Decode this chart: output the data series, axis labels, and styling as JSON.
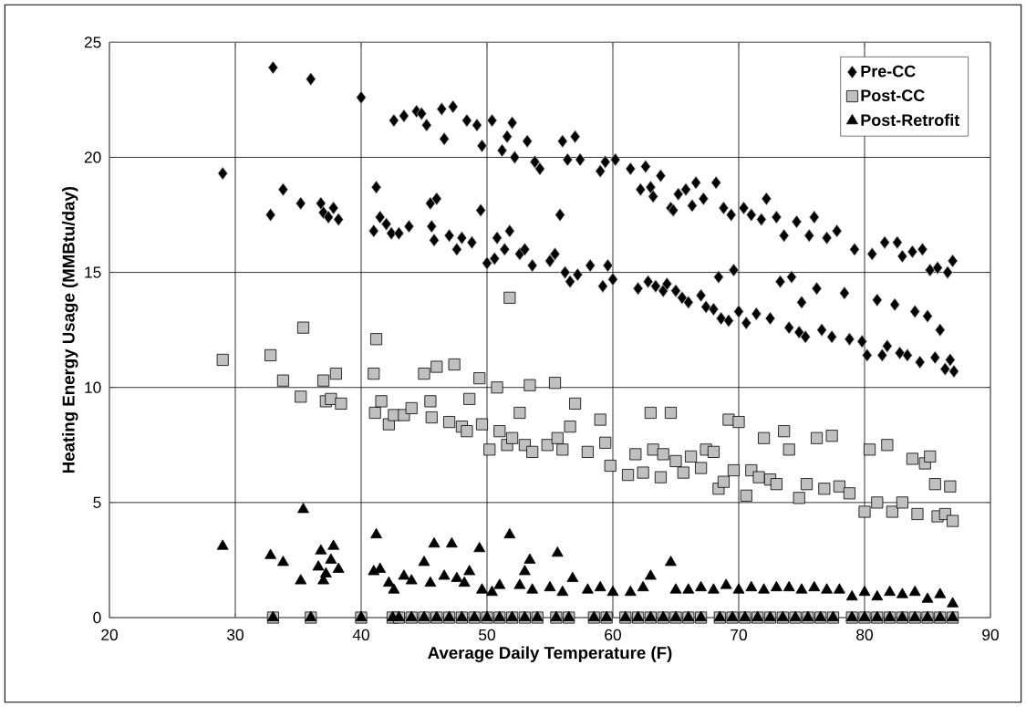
{
  "chart_data": {
    "type": "scatter",
    "xlabel": "Average Daily Temperature (F)",
    "ylabel": "Heating Energy Usage (MMBtu/day)",
    "xlim": [
      20,
      90
    ],
    "ylim": [
      0,
      25
    ],
    "xticks": [
      20,
      30,
      40,
      50,
      60,
      70,
      80,
      90
    ],
    "yticks": [
      0,
      5,
      10,
      15,
      20,
      25
    ],
    "grid": true,
    "legend": "top right",
    "series": [
      {
        "name": "Pre-CC",
        "color": "#000000",
        "marker": "diamond",
        "x": [
          29,
          33,
          32.8,
          33.8,
          35.2,
          36,
          36.8,
          37,
          37.4,
          37.8,
          38.2,
          40,
          41,
          41.2,
          41.5,
          42,
          42.4,
          42.6,
          43,
          43.4,
          43.8,
          44.4,
          44.8,
          45.2,
          45.5,
          45.6,
          45.8,
          46,
          46.4,
          46.6,
          47,
          47.3,
          47.6,
          48,
          48.4,
          48.8,
          49.2,
          49.5,
          49.6,
          50,
          50.4,
          50.6,
          50.8,
          51.2,
          51.4,
          51.6,
          51.8,
          52,
          52.2,
          52.6,
          53,
          53.2,
          53.6,
          53.8,
          54.2,
          55,
          55.4,
          55.8,
          56,
          56.2,
          56.4,
          56.6,
          57,
          57.2,
          57.4,
          58.2,
          59,
          59.2,
          59.4,
          59.6,
          60,
          60.2,
          61.4,
          62,
          62.2,
          62.6,
          62.8,
          63,
          63.2,
          63.4,
          63.8,
          64,
          64.3,
          64.6,
          64.8,
          65,
          65.2,
          65.5,
          65.8,
          66,
          66.3,
          66.6,
          67,
          67.2,
          67.4,
          68,
          68.2,
          68.4,
          68.6,
          68.8,
          69.2,
          69.4,
          69.6,
          70,
          70.4,
          70.6,
          71,
          71.4,
          71.8,
          72.2,
          72.5,
          73,
          73.3,
          73.6,
          74,
          74.2,
          74.6,
          74.8,
          75,
          75.3,
          75.6,
          76,
          76.2,
          76.6,
          77,
          77.4,
          77.8,
          78.4,
          78.8,
          79.2,
          79.8,
          80.2,
          80.6,
          81,
          81.4,
          81.6,
          81.8,
          82.4,
          82.6,
          82.8,
          83,
          83.4,
          83.8,
          84,
          84.4,
          84.6,
          85,
          85.2,
          85.6,
          85.8,
          86,
          86.4,
          86.6,
          86.8,
          87,
          87.1
        ],
        "values": [
          19.3,
          23.9,
          17.5,
          18.6,
          18,
          23.4,
          18,
          17.6,
          17.4,
          17.8,
          17.3,
          22.6,
          16.8,
          18.7,
          17.4,
          17.1,
          16.7,
          21.6,
          16.7,
          21.8,
          17,
          22,
          21.9,
          21.4,
          18,
          17,
          16.4,
          18.2,
          22.1,
          20.8,
          16.6,
          22.2,
          16,
          16.5,
          21.6,
          16.3,
          21.4,
          17.7,
          20.5,
          15.4,
          21.6,
          15.6,
          16.5,
          20.3,
          16,
          20.9,
          16.8,
          21.5,
          20,
          15.8,
          16,
          20.7,
          15.3,
          19.8,
          19.5,
          15.5,
          15.8,
          17.5,
          20.7,
          15,
          19.9,
          14.6,
          20.9,
          14.9,
          19.9,
          15.3,
          19.4,
          14.4,
          19.8,
          15.3,
          14.7,
          19.9,
          19.5,
          14.3,
          18.6,
          19.6,
          14.6,
          18.7,
          18.3,
          14.4,
          19.2,
          14.2,
          14.5,
          17.8,
          17.7,
          14.2,
          18.4,
          13.9,
          18.6,
          13.7,
          17.9,
          18.9,
          14,
          18.2,
          13.5,
          13.4,
          18.9,
          14.8,
          13,
          17.8,
          12.9,
          17.5,
          15.1,
          13.3,
          17.8,
          12.8,
          17.5,
          13.2,
          17.3,
          18.2,
          13,
          17.4,
          14.6,
          16.6,
          12.6,
          14.8,
          17.2,
          12.4,
          13.7,
          12.2,
          16.6,
          17.4,
          14.3,
          12.5,
          16.5,
          12.2,
          16.8,
          14.1,
          12.1,
          16,
          12,
          11.4,
          15.8,
          13.8,
          11.4,
          16.3,
          11.8,
          13.6,
          16.3,
          11.5,
          15.7,
          11.4,
          15.9,
          13.3,
          11.1,
          16,
          13.1,
          15.1,
          11.3,
          15.2,
          12.5,
          10.8,
          15,
          11.2,
          15.5,
          10.7
        ]
      },
      {
        "name": "Post-CC",
        "color": "#c0c0c0",
        "marker": "square",
        "x": [
          29,
          32.8,
          33.8,
          35.2,
          35.4,
          37,
          37.2,
          37.6,
          38,
          38.4,
          41,
          41.2,
          41.1,
          41.6,
          42.2,
          42.6,
          43.4,
          44,
          45,
          45.5,
          45.6,
          46,
          47,
          47.4,
          48,
          48.4,
          48.6,
          49.4,
          49.6,
          50.2,
          50.8,
          51,
          51.6,
          51.8,
          52,
          52.6,
          53,
          53.4,
          53.6,
          54.8,
          55.4,
          55.6,
          56,
          56.6,
          57,
          58,
          59,
          59.4,
          59.8,
          61.2,
          61.8,
          62.4,
          63,
          63.2,
          63.8,
          64,
          64.6,
          65,
          65.6,
          66.2,
          67,
          67.4,
          68,
          68.4,
          68.8,
          69.2,
          69.6,
          70,
          70.6,
          71,
          71.6,
          72,
          72.5,
          73,
          73.6,
          74,
          74.8,
          75.4,
          76.2,
          76.8,
          77.4,
          78,
          78.8,
          80,
          80.4,
          81,
          81.8,
          82.2,
          83,
          83.8,
          84.2,
          84.8,
          85.2,
          85.6,
          85.8,
          86.4,
          86.8,
          87,
          33,
          36,
          40,
          42.5,
          43,
          44,
          45,
          46,
          47,
          48,
          49,
          50,
          51,
          52,
          53,
          54,
          55.5,
          56.5,
          58.5,
          59.5,
          61,
          62,
          63,
          64,
          65,
          66,
          67,
          68.5,
          69.5,
          70.5,
          71.5,
          72.5,
          73.5,
          74.5,
          75.5,
          76.5,
          77.5,
          79,
          80,
          81,
          82,
          83,
          84,
          85,
          86,
          87
        ],
        "values": [
          11.2,
          11.4,
          10.3,
          9.6,
          12.6,
          10.3,
          9.4,
          9.5,
          10.6,
          9.3,
          10.6,
          12.1,
          8.9,
          9.4,
          8.4,
          8.8,
          8.8,
          9.1,
          10.6,
          9.4,
          8.7,
          10.9,
          8.5,
          11,
          8.3,
          8.1,
          9.5,
          10.4,
          8.4,
          7.3,
          10,
          8.1,
          7.5,
          13.9,
          7.8,
          8.9,
          7.5,
          10.1,
          7.2,
          7.5,
          10.2,
          7.8,
          7.3,
          8.3,
          9.3,
          7.2,
          8.6,
          7.6,
          6.6,
          6.2,
          7.1,
          6.3,
          8.9,
          7.3,
          6.1,
          7.1,
          8.9,
          6.8,
          6.3,
          7,
          6.5,
          7.3,
          7.2,
          5.6,
          5.9,
          8.6,
          6.4,
          8.5,
          5.3,
          6.4,
          6.1,
          7.8,
          6,
          5.8,
          8.1,
          7.3,
          5.2,
          5.8,
          7.8,
          5.6,
          7.9,
          5.7,
          5.4,
          4.6,
          7.3,
          5,
          7.5,
          4.6,
          5,
          6.9,
          4.5,
          6.7,
          7,
          5.8,
          4.4,
          4.5,
          5.7,
          4.2,
          0,
          0,
          0,
          0,
          0,
          0,
          0,
          0,
          0,
          0,
          0,
          0,
          0,
          0,
          0,
          0,
          0,
          0,
          0,
          0,
          0,
          0,
          0,
          0,
          0,
          0,
          0,
          0,
          0,
          0,
          0,
          0,
          0,
          0,
          0,
          0,
          0,
          0,
          0,
          0,
          0,
          0,
          0,
          0,
          0,
          0
        ]
      },
      {
        "name": "Post-Retrofit",
        "color": "#000000",
        "marker": "triangle",
        "x": [
          29,
          32.8,
          33.8,
          35.2,
          35.4,
          36.6,
          36.8,
          37.2,
          37.6,
          37.8,
          38.2,
          37,
          41,
          41.2,
          41.5,
          42.2,
          42.6,
          43.4,
          44,
          45,
          45.5,
          45.8,
          46.6,
          47.2,
          47.6,
          48.2,
          48.6,
          49.4,
          49.6,
          50.4,
          51,
          51.8,
          52.6,
          53,
          53.4,
          53.6,
          55,
          55.6,
          56,
          56.8,
          58,
          59,
          60,
          61.4,
          62.4,
          63,
          64.6,
          65,
          66,
          67,
          68,
          69,
          70,
          71,
          72,
          73,
          74,
          75,
          76,
          77,
          78,
          79,
          80,
          81,
          82,
          83,
          84,
          85,
          86,
          87,
          33,
          36,
          40,
          42.5,
          43,
          44,
          45,
          46,
          47,
          48,
          49,
          50,
          51,
          52,
          53,
          54,
          55.5,
          56.5,
          58.5,
          59.5,
          61,
          62,
          63,
          64,
          65,
          66,
          67,
          68.5,
          69.5,
          70.5,
          71.5,
          72.5,
          73.5,
          74.5,
          75.5,
          76.5,
          77.5,
          79,
          80,
          81,
          82,
          83,
          84,
          85,
          86,
          87
        ],
        "values": [
          3.1,
          2.7,
          2.4,
          1.6,
          4.7,
          2.2,
          2.9,
          1.9,
          2.5,
          3.1,
          2.1,
          1.6,
          2,
          3.6,
          2.1,
          1.5,
          1.2,
          1.8,
          1.6,
          2.4,
          1.5,
          3.2,
          1.8,
          3.2,
          1.7,
          1.5,
          2,
          3,
          1.2,
          1.1,
          1.4,
          3.6,
          1.4,
          2,
          2.5,
          1.2,
          1.3,
          2.8,
          1.1,
          1.7,
          1.2,
          1.3,
          1.1,
          1.1,
          1.3,
          1.8,
          2.4,
          1.2,
          1.2,
          1.3,
          1.2,
          1.4,
          1.2,
          1.3,
          1.2,
          1.3,
          1.3,
          1.2,
          1.3,
          1.2,
          1.2,
          0.9,
          1.1,
          0.9,
          1.1,
          1,
          1.1,
          0.8,
          1,
          0.6,
          0,
          0,
          0,
          0,
          0,
          0,
          0,
          0,
          0,
          0,
          0,
          0,
          0,
          0,
          0,
          0,
          0,
          0,
          0,
          0,
          0,
          0,
          0,
          0,
          0,
          0,
          0,
          0,
          0,
          0,
          0,
          0,
          0,
          0,
          0,
          0,
          0,
          0,
          0,
          0,
          0,
          0,
          0,
          0,
          0,
          0
        ]
      }
    ]
  }
}
